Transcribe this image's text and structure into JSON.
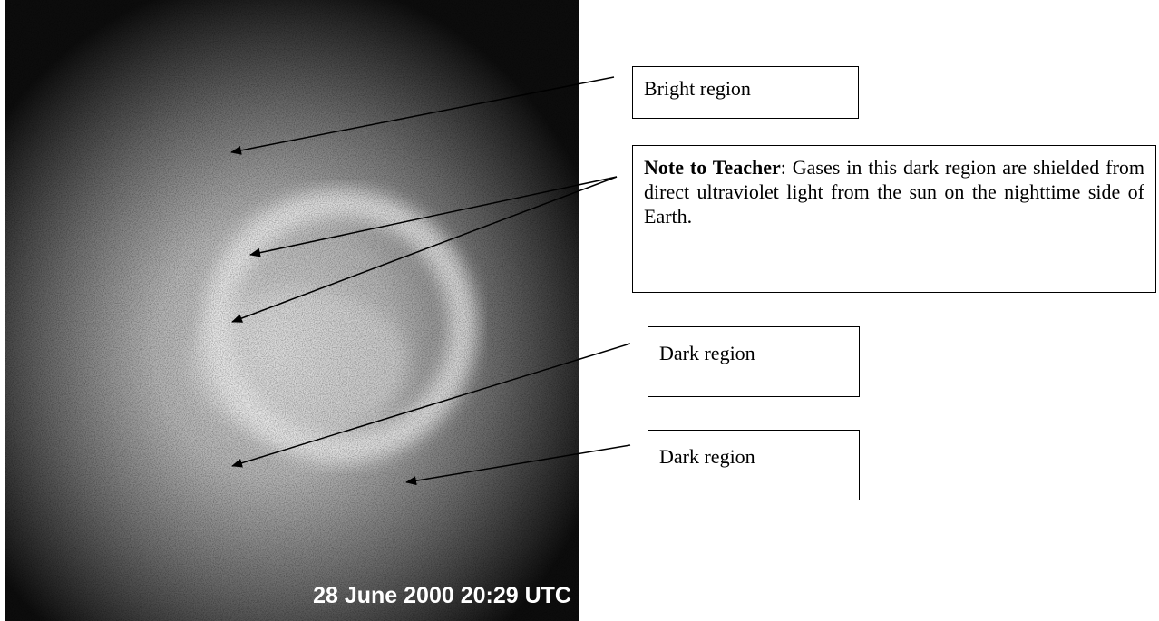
{
  "image": {
    "caption": "28 June 2000 20:29 UTC"
  },
  "labels": [
    {
      "text": "Bright region"
    },
    {
      "note_bold": "Note to Teacher",
      "note_text": ": Gases in this dark region are shielded from direct ultraviolet light from the sun on the nighttime side of Earth."
    },
    {
      "text": "Dark region"
    },
    {
      "text": "Dark region"
    }
  ]
}
